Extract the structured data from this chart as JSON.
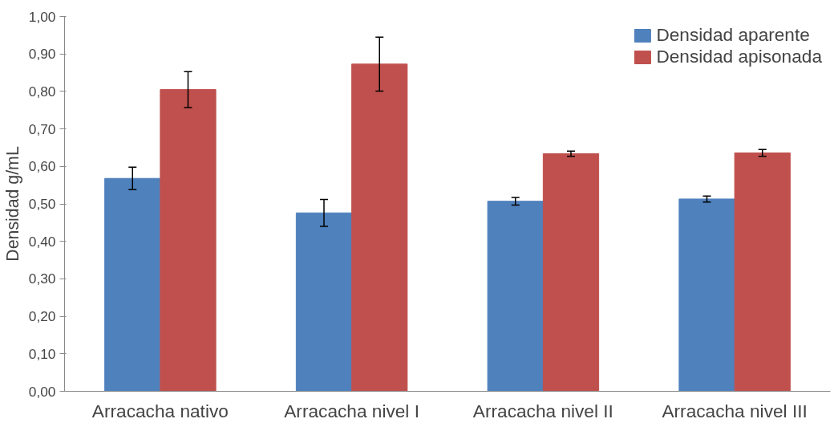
{
  "chart_data": {
    "type": "bar",
    "ylabel": "Densidad g/mL",
    "categories": [
      "Arracacha nativo",
      "Arracacha nivel I",
      "Arracacha nivel II",
      "Arracacha nivel III"
    ],
    "series": [
      {
        "name": "Densidad aparente",
        "color": "#4f81bd",
        "values": [
          0.568,
          0.476,
          0.507,
          0.513
        ],
        "errors": [
          0.03,
          0.036,
          0.01,
          0.008
        ]
      },
      {
        "name": "Densidad apisonada",
        "color": "#c0504d",
        "values": [
          0.805,
          0.873,
          0.634,
          0.636
        ],
        "errors": [
          0.048,
          0.072,
          0.007,
          0.009
        ]
      }
    ],
    "ylim": [
      0,
      1
    ],
    "yticks": [
      {
        "value": 0,
        "label": "0,00"
      },
      {
        "value": 0.1,
        "label": "0,10"
      },
      {
        "value": 0.2,
        "label": "0,20"
      },
      {
        "value": 0.3,
        "label": "0,30"
      },
      {
        "value": 0.4,
        "label": "0,40"
      },
      {
        "value": 0.5,
        "label": "0,50"
      },
      {
        "value": 0.6,
        "label": "0,60"
      },
      {
        "value": 0.7,
        "label": "0,70"
      },
      {
        "value": 0.8,
        "label": "0,80"
      },
      {
        "value": 0.9,
        "label": "0,90"
      },
      {
        "value": 1.0,
        "label": "1,00"
      }
    ],
    "grid": false,
    "legend": "top right"
  }
}
